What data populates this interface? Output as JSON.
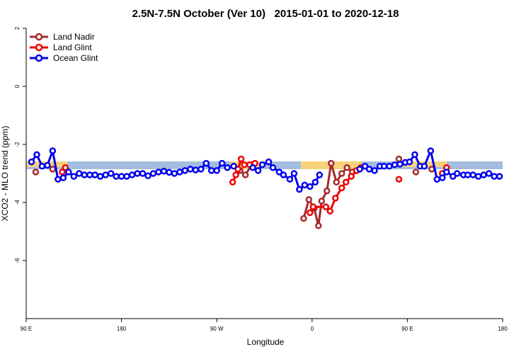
{
  "chart_data": {
    "type": "line",
    "title": "2.5N-7.5N October (Ver 10)   2015-01-01 to 2020-12-18",
    "xlabel": "Longitude",
    "ylabel": "XCO2 - MLO trend (ppm)",
    "xlim": [
      90,
      540
    ],
    "xticks": [
      {
        "value": 90,
        "label": "90 E"
      },
      180,
      {
        "value": 270,
        "label": "90 W"
      },
      {
        "value": 360,
        "label": "0"
      },
      {
        "value": 450,
        "label": "90 E"
      },
      {
        "value": 540,
        "label": "180"
      }
    ],
    "ylim": [
      -8,
      2
    ],
    "yticks": [
      -6,
      -4,
      -2,
      0,
      2
    ],
    "legend": "top-left",
    "series": [
      {
        "name": "Land Nadir",
        "color": "#a52a2a",
        "x": [
          99,
          null,
          115,
          null,
          292,
          297,
          303,
          null,
          352,
          357,
          362,
          366,
          369,
          374,
          378,
          383,
          388,
          393,
          398,
          null,
          442,
          null,
          458,
          null,
          473
        ],
        "values": [
          -2.95,
          null,
          -2.85,
          null,
          -2.9,
          -3.05,
          -2.7,
          null,
          -4.55,
          -3.9,
          -4.2,
          -4.8,
          -3.95,
          -3.6,
          -2.65,
          -3.3,
          -3.0,
          -2.8,
          -2.95,
          null,
          -2.5,
          null,
          -2.95,
          null,
          -2.85
        ]
      },
      {
        "name": "Land Glint",
        "color": "#ee0000",
        "x": [
          124,
          127,
          null,
          285,
          288,
          290,
          293,
          296,
          301,
          306,
          null,
          358,
          361,
          373,
          377,
          382,
          388,
          392,
          397,
          402,
          406,
          null,
          442,
          null,
          483,
          487
        ],
        "values": [
          -2.95,
          -2.8,
          null,
          -3.3,
          -3.05,
          -2.85,
          -2.5,
          -2.7,
          -2.7,
          -2.65,
          null,
          -4.35,
          -4.15,
          -4.15,
          -4.3,
          -3.85,
          -3.5,
          -3.3,
          -3.1,
          -2.9,
          -2.8,
          null,
          -3.2,
          null,
          -3.0,
          -2.8
        ]
      },
      {
        "name": "Ocean Glint",
        "color": "#0000ee",
        "x": [
          95,
          100,
          105,
          110,
          115,
          120,
          125,
          130,
          135,
          140,
          145,
          150,
          155,
          160,
          165,
          170,
          175,
          180,
          185,
          190,
          195,
          200,
          205,
          210,
          215,
          220,
          225,
          230,
          235,
          240,
          245,
          250,
          255,
          260,
          265,
          270,
          275,
          280,
          286,
          null,
          304,
          309,
          313,
          319,
          323,
          329,
          333,
          339,
          343,
          348,
          353,
          358,
          363,
          367,
          null,
          405,
          410,
          414,
          419,
          424,
          428,
          433,
          438,
          443,
          448,
          452,
          457,
          462,
          466,
          472,
          478,
          483,
          487,
          493,
          497,
          503,
          507,
          512,
          517,
          522,
          527,
          532,
          537
        ],
        "values": [
          -2.6,
          -2.35,
          -2.75,
          -2.72,
          -2.22,
          -3.2,
          -3.15,
          -2.95,
          -3.1,
          -3.0,
          -3.05,
          -3.05,
          -3.05,
          -3.1,
          -3.05,
          -3.0,
          -3.1,
          -3.1,
          -3.1,
          -3.05,
          -3.0,
          -3.0,
          -3.08,
          -3.0,
          -2.95,
          -2.92,
          -2.96,
          -3.0,
          -2.95,
          -2.9,
          -2.85,
          -2.88,
          -2.85,
          -2.65,
          -2.9,
          -2.9,
          -2.65,
          -2.8,
          -2.75,
          null,
          -2.8,
          -2.9,
          -2.7,
          -2.6,
          -2.8,
          -2.95,
          -3.05,
          -3.2,
          -3.0,
          -3.55,
          -3.4,
          -3.45,
          -3.3,
          -3.05,
          null,
          -2.85,
          -2.75,
          -2.85,
          -2.9,
          -2.75,
          -2.75,
          -2.75,
          -2.7,
          -2.68,
          -2.62,
          -2.6,
          -2.35,
          -2.75,
          -2.75,
          -2.22,
          -3.2,
          -3.15,
          -2.95,
          -3.1,
          -3.0,
          -3.05,
          -3.05,
          -3.05,
          -3.1,
          -3.05,
          -3.0,
          -3.1,
          -3.1
        ]
      }
    ]
  }
}
